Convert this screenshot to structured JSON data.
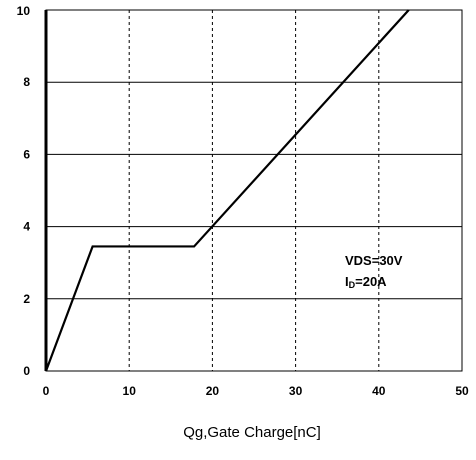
{
  "chart_data": {
    "type": "line",
    "title": "",
    "xlabel": "Qg,Gate Charge[nC]",
    "ylabel": "",
    "xlim": [
      0,
      50
    ],
    "ylim": [
      0,
      10
    ],
    "x_ticks": [
      "0",
      "10",
      "20",
      "30",
      "40",
      "50"
    ],
    "y_ticks": [
      "0",
      "2",
      "4",
      "6",
      "8",
      "10"
    ],
    "grid": {
      "vertical": "dashed",
      "horizontal": "solid"
    },
    "series": [
      {
        "x": [
          0,
          5.6,
          17.8,
          43.6
        ],
        "y": [
          0,
          3.45,
          3.45,
          10
        ]
      }
    ],
    "annotations": [
      {
        "text": "VDS=30V"
      },
      {
        "text_main": "I",
        "text_sub": "D",
        "text_tail": "=20A"
      }
    ]
  }
}
